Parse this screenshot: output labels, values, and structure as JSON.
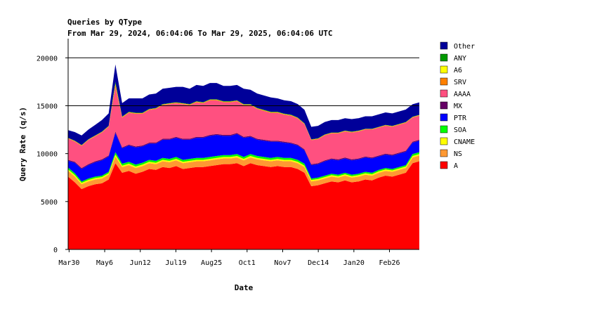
{
  "chart_data": {
    "type": "area",
    "stacked": true,
    "title": "Queries by QType",
    "subtitle": "From Mar 29, 2024, 06:04:06 To Mar 29, 2025, 06:04:06 UTC",
    "xlabel": "Date",
    "ylabel": "Query Rate (q/s)",
    "ylim": [
      0,
      22000
    ],
    "yticks": [
      0,
      5000,
      10000,
      15000,
      20000
    ],
    "gridlines_y": [
      15000,
      20000
    ],
    "x_range_days": [
      0,
      365
    ],
    "xticks": [
      {
        "label": "Mar30",
        "day": 1
      },
      {
        "label": "May6",
        "day": 38
      },
      {
        "label": "Jun12",
        "day": 75
      },
      {
        "label": "Jul19",
        "day": 112
      },
      {
        "label": "Aug25",
        "day": 149
      },
      {
        "label": "Oct1",
        "day": 186
      },
      {
        "label": "Nov7",
        "day": 223
      },
      {
        "label": "Dec14",
        "day": 260
      },
      {
        "label": "Jan20",
        "day": 297
      },
      {
        "label": "Feb26",
        "day": 334
      }
    ],
    "legend_position": "right",
    "series": [
      {
        "name": "Other",
        "color": "#000099"
      },
      {
        "name": "ANY",
        "color": "#009900"
      },
      {
        "name": "A6",
        "color": "#ffff00"
      },
      {
        "name": "SRV",
        "color": "#ff8000"
      },
      {
        "name": "AAAA",
        "color": "#ff5080"
      },
      {
        "name": "MX",
        "color": "#660066"
      },
      {
        "name": "PTR",
        "color": "#0000ff"
      },
      {
        "name": "SOA",
        "color": "#00ff00"
      },
      {
        "name": "CNAME",
        "color": "#ffff00"
      },
      {
        "name": "NS",
        "color": "#ff9933"
      },
      {
        "name": "A",
        "color": "#ff0000"
      }
    ],
    "stack_order_bottom_to_top": [
      "A",
      "NS",
      "CNAME",
      "SOA",
      "PTR",
      "MX",
      "AAAA",
      "SRV",
      "A6",
      "ANY",
      "Other"
    ],
    "approx_weekly_totals": {
      "x_week_index": [
        0,
        1,
        2,
        3,
        4,
        5,
        6,
        7,
        8,
        9,
        10,
        11,
        12,
        13,
        14,
        15,
        16,
        17,
        18,
        19,
        20,
        21,
        22,
        23,
        24,
        25,
        26,
        27,
        28,
        29,
        30,
        31,
        32,
        33,
        34,
        35,
        36,
        37,
        38,
        39,
        40,
        41,
        42,
        43,
        44,
        45,
        46,
        47,
        48,
        49,
        50,
        51,
        52
      ],
      "A": [
        7600,
        7000,
        6300,
        6600,
        6800,
        6900,
        7300,
        9000,
        8000,
        8200,
        7900,
        8100,
        8400,
        8300,
        8600,
        8500,
        8700,
        8400,
        8500,
        8600,
        8600,
        8700,
        8800,
        8900,
        8900,
        9000,
        8700,
        9000,
        8800,
        8700,
        8600,
        8700,
        8600,
        8600,
        8400,
        8000,
        6600,
        6700,
        6900,
        7100,
        7000,
        7200,
        7000,
        7100,
        7300,
        7200,
        7500,
        7700,
        7600,
        7800,
        8000,
        9000,
        9200
      ],
      "NS": [
        600,
        600,
        500,
        500,
        500,
        500,
        500,
        700,
        600,
        600,
        600,
        600,
        600,
        600,
        600,
        600,
        600,
        600,
        600,
        600,
        600,
        600,
        600,
        600,
        600,
        600,
        600,
        600,
        600,
        600,
        600,
        600,
        600,
        600,
        600,
        600,
        500,
        500,
        500,
        500,
        500,
        500,
        500,
        500,
        500,
        500,
        500,
        500,
        500,
        500,
        500,
        600,
        600
      ],
      "CNAME": [
        150,
        150,
        150,
        150,
        150,
        150,
        150,
        200,
        150,
        150,
        150,
        150,
        150,
        150,
        150,
        150,
        150,
        150,
        150,
        150,
        150,
        150,
        150,
        150,
        150,
        150,
        150,
        150,
        150,
        150,
        150,
        150,
        150,
        150,
        150,
        150,
        150,
        150,
        150,
        150,
        150,
        150,
        150,
        150,
        150,
        150,
        150,
        150,
        150,
        150,
        150,
        150,
        150
      ],
      "SOA": [
        200,
        200,
        150,
        150,
        150,
        150,
        150,
        250,
        200,
        200,
        200,
        200,
        200,
        200,
        200,
        200,
        200,
        200,
        200,
        200,
        200,
        200,
        200,
        200,
        200,
        200,
        200,
        200,
        200,
        200,
        200,
        200,
        200,
        200,
        200,
        200,
        150,
        150,
        150,
        150,
        150,
        150,
        150,
        150,
        150,
        150,
        150,
        150,
        150,
        150,
        150,
        200,
        200
      ],
      "PTR": [
        700,
        1100,
        1300,
        1400,
        1500,
        1600,
        1600,
        2000,
        1600,
        1700,
        1800,
        1700,
        1700,
        1800,
        1900,
        2000,
        2000,
        2100,
        2000,
        2100,
        2100,
        2200,
        2200,
        2000,
        2000,
        2100,
        2000,
        1800,
        1700,
        1700,
        1700,
        1600,
        1600,
        1500,
        1500,
        1400,
        1400,
        1400,
        1500,
        1500,
        1500,
        1500,
        1500,
        1500,
        1500,
        1500,
        1400,
        1400,
        1400,
        1400,
        1400,
        1200,
        1200
      ],
      "MX": [
        100,
        100,
        100,
        100,
        100,
        100,
        100,
        150,
        100,
        100,
        100,
        100,
        100,
        100,
        100,
        100,
        100,
        100,
        100,
        100,
        100,
        100,
        100,
        100,
        100,
        100,
        100,
        100,
        100,
        100,
        100,
        100,
        100,
        100,
        100,
        100,
        100,
        100,
        100,
        100,
        100,
        100,
        100,
        100,
        100,
        100,
        100,
        100,
        100,
        100,
        100,
        100,
        100
      ],
      "AAAA": [
        2200,
        2100,
        2300,
        2500,
        2600,
        2800,
        3000,
        4600,
        3100,
        3300,
        3400,
        3300,
        3400,
        3500,
        3500,
        3600,
        3500,
        3600,
        3500,
        3600,
        3500,
        3600,
        3500,
        3400,
        3400,
        3300,
        3300,
        3200,
        3100,
        3000,
        2900,
        2900,
        2800,
        2800,
        2700,
        2600,
        2500,
        2500,
        2600,
        2600,
        2700,
        2700,
        2800,
        2800,
        2800,
        2900,
        2900,
        2900,
        2900,
        2900,
        2900,
        2500,
        2500
      ],
      "SRV": [
        50,
        50,
        50,
        50,
        50,
        50,
        50,
        300,
        60,
        60,
        60,
        60,
        60,
        60,
        60,
        60,
        60,
        60,
        60,
        60,
        60,
        60,
        60,
        60,
        60,
        60,
        60,
        60,
        60,
        60,
        60,
        60,
        60,
        60,
        60,
        60,
        50,
        50,
        50,
        50,
        50,
        50,
        50,
        50,
        50,
        50,
        50,
        50,
        50,
        50,
        50,
        50,
        50
      ],
      "A6": [
        20,
        20,
        20,
        20,
        20,
        20,
        20,
        100,
        20,
        20,
        20,
        20,
        20,
        20,
        20,
        20,
        20,
        20,
        20,
        20,
        20,
        20,
        20,
        20,
        20,
        20,
        20,
        20,
        20,
        20,
        20,
        20,
        20,
        20,
        20,
        20,
        20,
        20,
        20,
        20,
        20,
        20,
        20,
        20,
        20,
        20,
        20,
        20,
        20,
        20,
        20,
        20,
        20
      ],
      "ANY": [
        30,
        30,
        30,
        30,
        30,
        30,
        30,
        200,
        40,
        40,
        40,
        40,
        40,
        40,
        40,
        40,
        40,
        40,
        40,
        40,
        40,
        40,
        40,
        40,
        40,
        40,
        40,
        40,
        40,
        40,
        40,
        40,
        40,
        40,
        40,
        40,
        30,
        30,
        30,
        30,
        30,
        30,
        30,
        30,
        30,
        30,
        30,
        30,
        30,
        30,
        30,
        30,
        30
      ],
      "Other": [
        800,
        900,
        1000,
        1000,
        1100,
        1200,
        1300,
        1800,
        1400,
        1400,
        1500,
        1500,
        1500,
        1500,
        1600,
        1600,
        1600,
        1700,
        1600,
        1700,
        1700,
        1700,
        1700,
        1600,
        1600,
        1600,
        1600,
        1500,
        1500,
        1500,
        1500,
        1400,
        1400,
        1400,
        1400,
        1400,
        1300,
        1300,
        1300,
        1300,
        1300,
        1300,
        1300,
        1300,
        1300,
        1300,
        1300,
        1300,
        1300,
        1300,
        1300,
        1300,
        1300
      ]
    }
  }
}
